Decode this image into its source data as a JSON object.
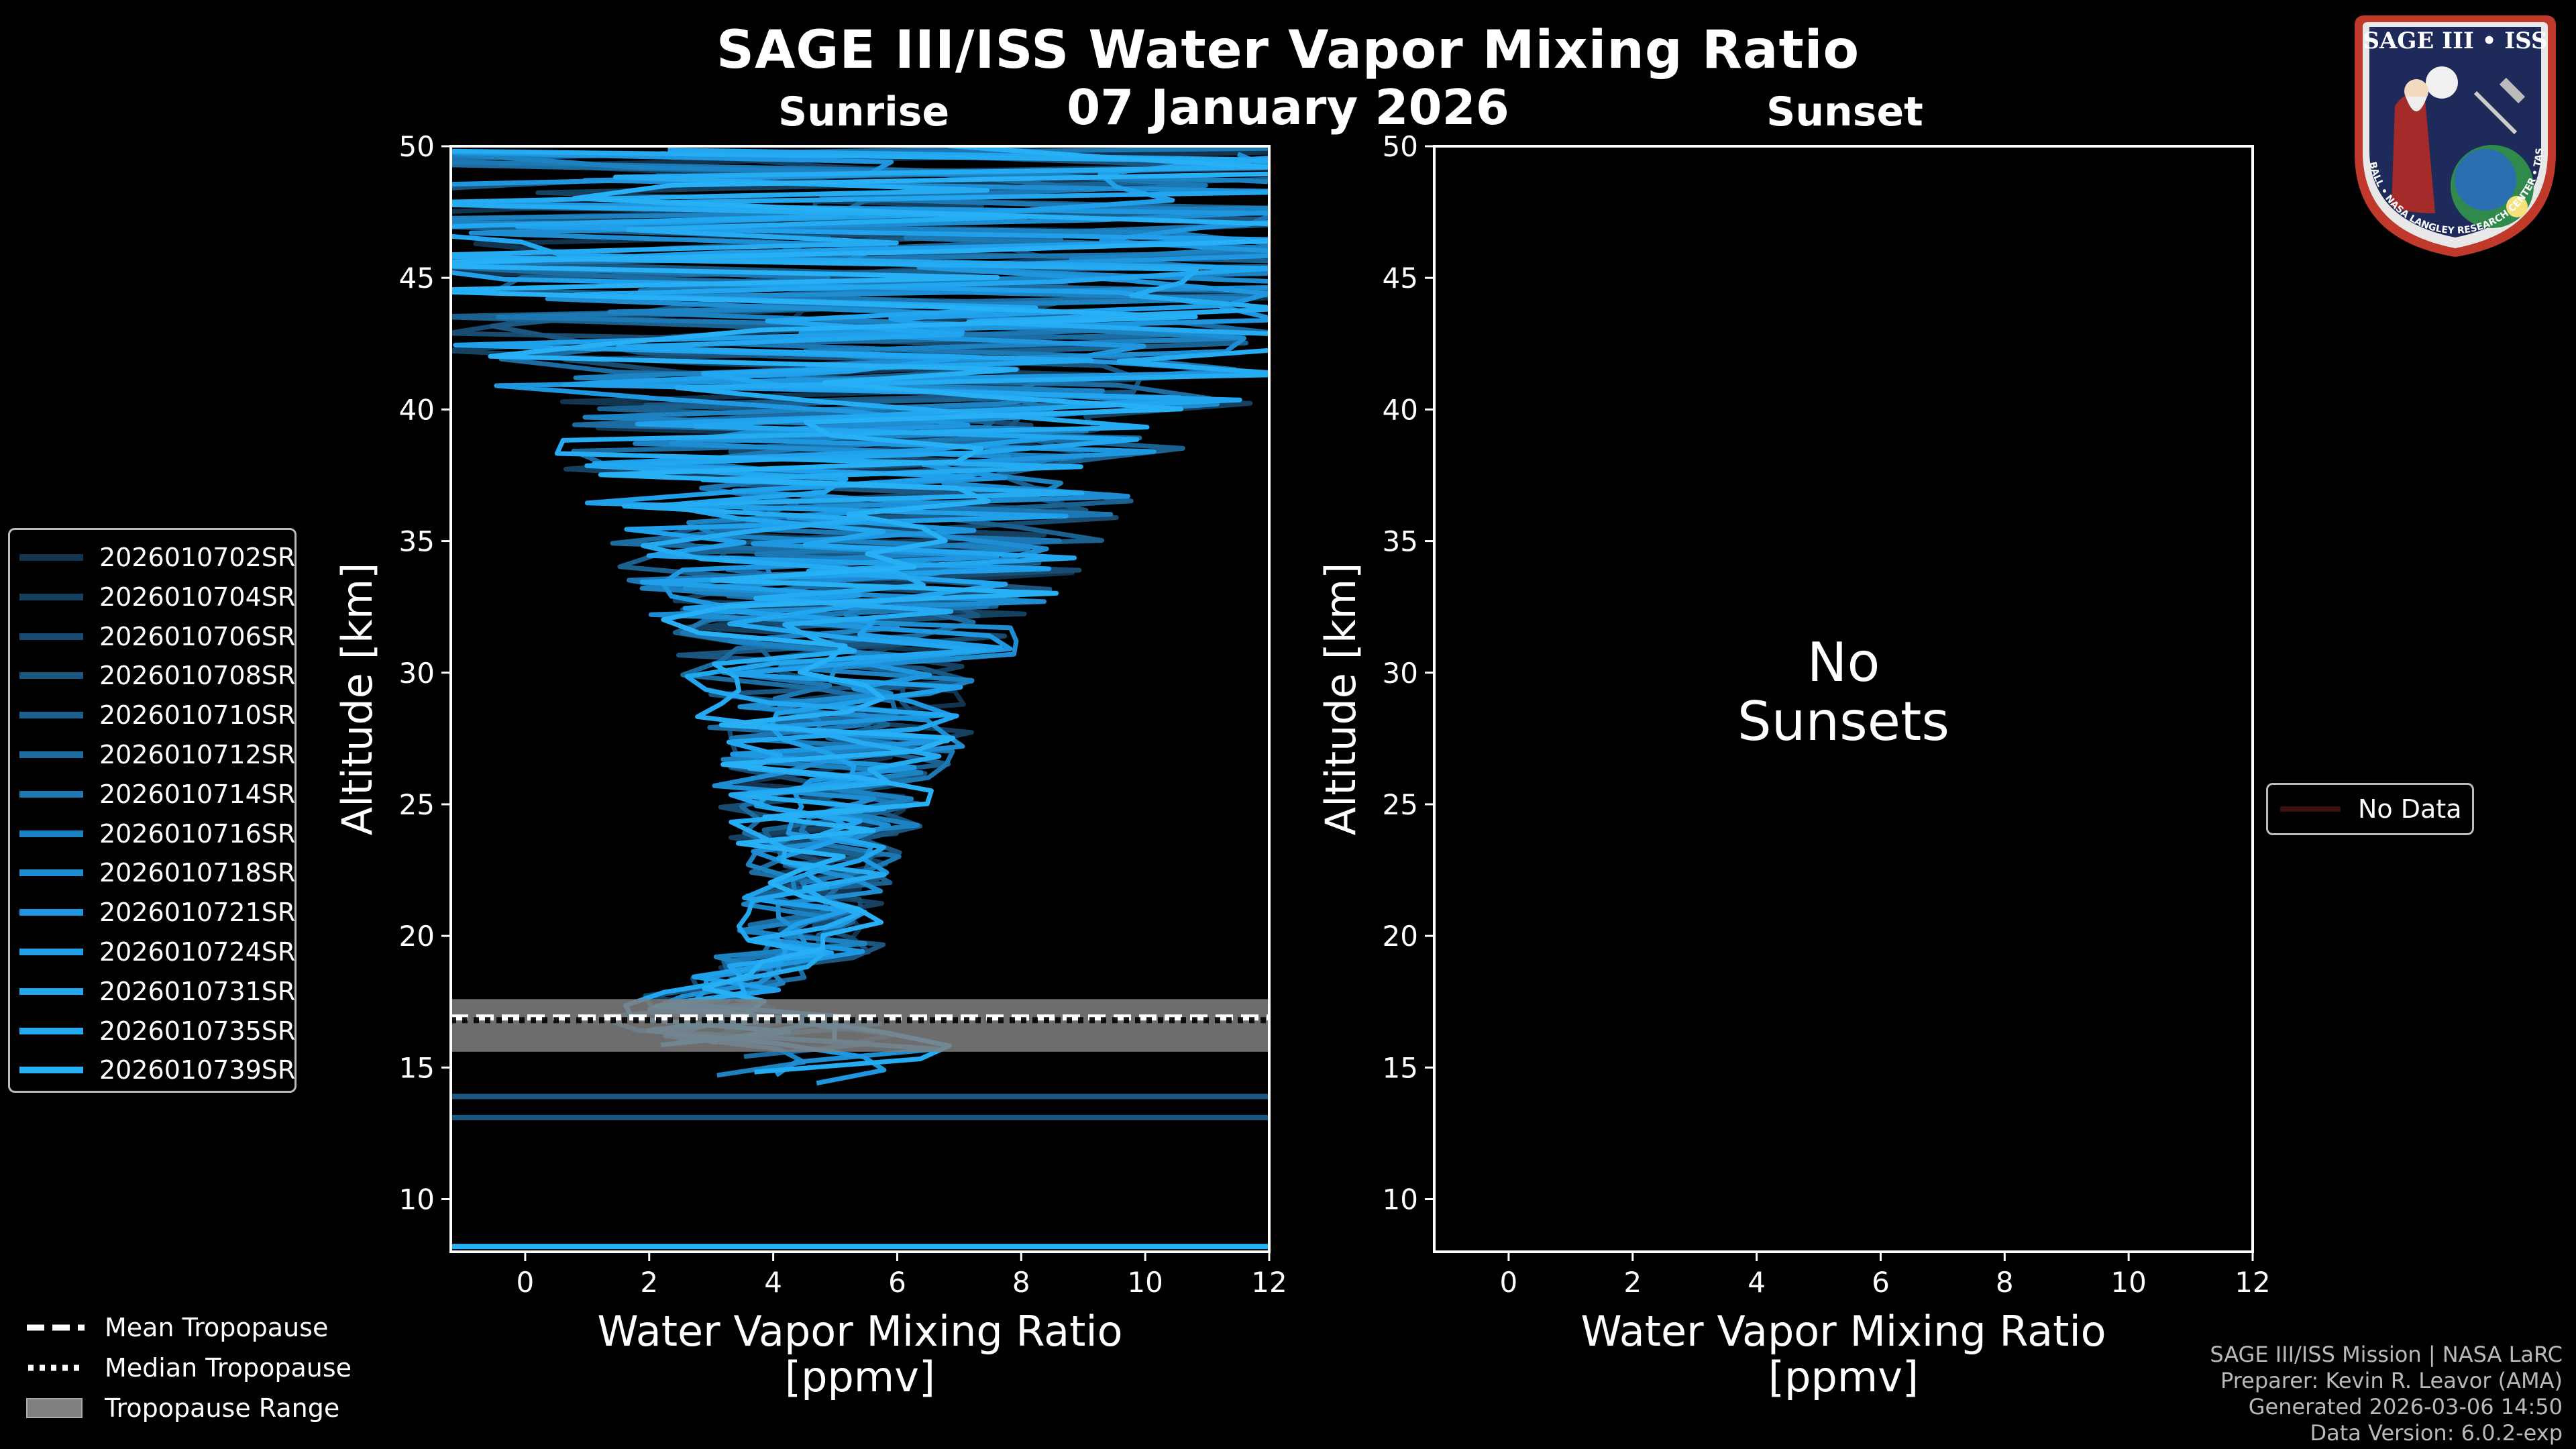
{
  "title": "SAGE III/ISS Water Vapor Mixing Ratio",
  "date": "07 January 2026",
  "panels": {
    "sunrise": {
      "title": "Sunrise"
    },
    "sunset": {
      "title": "Sunset",
      "no_data_text_line1": "No",
      "no_data_text_line2": "Sunsets"
    }
  },
  "legend": {
    "events": [
      "2026010702SR",
      "2026010704SR",
      "2026010706SR",
      "2026010708SR",
      "2026010710SR",
      "2026010712SR",
      "2026010714SR",
      "2026010716SR",
      "2026010718SR",
      "2026010721SR",
      "2026010724SR",
      "2026010731SR",
      "2026010735SR",
      "2026010739SR"
    ],
    "event_colors": [
      "#12344f",
      "#15405f",
      "#184b6f",
      "#1a5680",
      "#1b6190",
      "#1c6ca1",
      "#1c77b2",
      "#1d82c2",
      "#1e8dd2",
      "#1f97e0",
      "#20a0ea",
      "#22a6ef",
      "#24abf2",
      "#27b0f5"
    ],
    "tropopause": [
      "Mean Tropopause",
      "Median Tropopause",
      "Tropopause Range"
    ],
    "sunset_entry": "No Data"
  },
  "footer": {
    "line1": "SAGE III/ISS Mission | NASA LaRC",
    "line2": "Preparer: Kevin R. Leavor (AMA)",
    "line3": "Generated 2026-03-06 14:50",
    "line4": "Data Version: 6.0.2-exp"
  },
  "logo": {
    "line1": "SAGE III • ISS",
    "ring_text": "BALL • NASA LANGLEY RESEARCH CENTER • TAS • ESA"
  },
  "colors": {
    "tropo_band": "#808080",
    "frame": "#ffffff",
    "sunset_line": "#3d0e0e"
  },
  "chart_data": [
    {
      "type": "line",
      "panel": "sunrise",
      "xlabel_line1": "Water Vapor Mixing Ratio",
      "xlabel_line2": "[ppmv]",
      "ylabel": "Altitude [km]",
      "xlim": [
        -1.2,
        12
      ],
      "ylim": [
        8,
        50
      ],
      "xticks": [
        0,
        2,
        4,
        6,
        8,
        10,
        12
      ],
      "yticks": [
        10,
        15,
        20,
        25,
        30,
        35,
        40,
        45,
        50
      ],
      "tropopause": {
        "mean_km": 16.9,
        "median_km": 16.8,
        "range_km": [
          15.6,
          17.6
        ]
      },
      "low_altitude_lines_km": [
        13.9,
        13.1,
        8.2
      ],
      "series_note": "14 noisy water vapor profiles, ~5 ppmv near 18-25 km widening to -1..12 ppmv above 40 km"
    },
    {
      "type": "line",
      "panel": "sunset",
      "xlabel_line1": "Water Vapor Mixing Ratio",
      "xlabel_line2": "[ppmv]",
      "ylabel": "Altitude [km]",
      "xlim": [
        -1.2,
        12
      ],
      "ylim": [
        8,
        50
      ],
      "xticks": [
        0,
        2,
        4,
        6,
        8,
        10,
        12
      ],
      "yticks": [
        10,
        15,
        20,
        25,
        30,
        35,
        40,
        45,
        50
      ]
    }
  ]
}
